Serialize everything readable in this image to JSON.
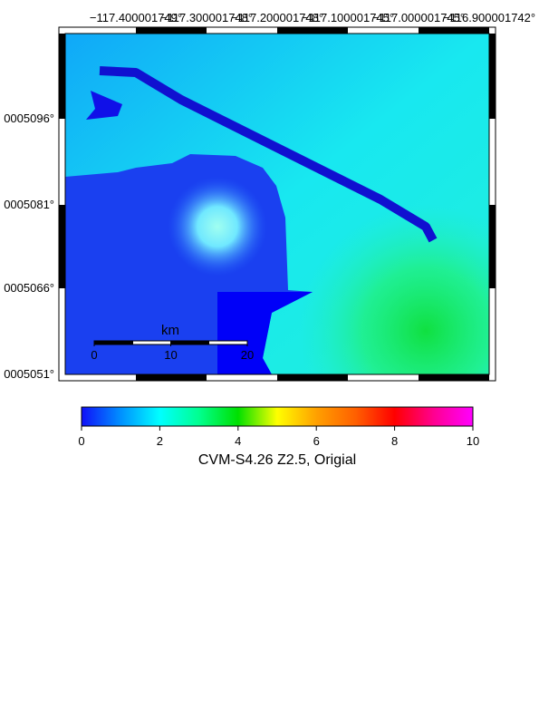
{
  "map": {
    "lon_labels": [
      "−117.400001749°",
      "−117.300001748°",
      "−117.200001748°",
      "−117.100001745°",
      "−117.000001745°",
      "−116.900001742°"
    ],
    "lat_labels": [
      "0005096°",
      "0005081°",
      "0005066°",
      "0005051°"
    ],
    "scale_bar": {
      "unit": "km",
      "ticks": [
        0,
        10,
        20
      ]
    }
  },
  "colorbar": {
    "range": [
      0,
      10
    ],
    "ticks": [
      0,
      2,
      4,
      6,
      8,
      10
    ],
    "label": "CVM-S4.26 Z2.5, Origial"
  }
}
